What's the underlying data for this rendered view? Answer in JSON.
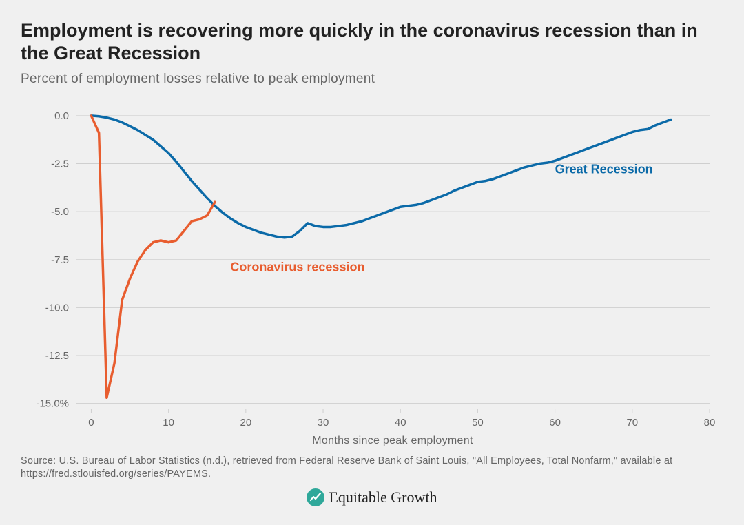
{
  "title": "Employment is recovering more quickly in the coronavirus recession than in the Great Recession",
  "subtitle": "Percent of employment losses relative to peak employment",
  "source": "Source: U.S. Bureau of Labor Statistics (n.d.), retrieved from Federal Reserve Bank of Saint Louis, \"All Employees, Total Nonfarm,\" available at https://fred.stlouisfed.org/series/PAYEMS.",
  "brand": {
    "name": "Equitable Growth",
    "icon_bg": "#2fa89a",
    "icon_fg": "#ffffff"
  },
  "chart": {
    "type": "line",
    "background_color": "#f0f0f0",
    "grid_color": "#cfcfcf",
    "text_color": "#666666",
    "xlabel": "Months since peak employment",
    "label_fontsize": 16,
    "tick_fontsize": 15,
    "xlim": [
      -2,
      80
    ],
    "ylim": [
      -15.3,
      0.5
    ],
    "xticks": [
      0,
      10,
      20,
      30,
      40,
      50,
      60,
      70,
      80
    ],
    "yticks": [
      -15.0,
      -12.5,
      -10.0,
      -7.5,
      -5.0,
      -2.5,
      0.0
    ],
    "ytick_labels": [
      "-15.0%",
      "-12.5",
      "-10.0",
      "-7.5",
      "-5.0",
      "-2.5",
      "0.0"
    ],
    "line_width": 3.5,
    "series": [
      {
        "name": "Great Recession",
        "color": "#0b6aa8",
        "label_x": 60,
        "label_y": -3.0,
        "points": [
          [
            0,
            0.0
          ],
          [
            1,
            -0.03
          ],
          [
            2,
            -0.1
          ],
          [
            3,
            -0.2
          ],
          [
            4,
            -0.35
          ],
          [
            5,
            -0.55
          ],
          [
            6,
            -0.75
          ],
          [
            7,
            -1.0
          ],
          [
            8,
            -1.25
          ],
          [
            9,
            -1.6
          ],
          [
            10,
            -1.95
          ],
          [
            11,
            -2.4
          ],
          [
            12,
            -2.9
          ],
          [
            13,
            -3.4
          ],
          [
            14,
            -3.85
          ],
          [
            15,
            -4.3
          ],
          [
            16,
            -4.7
          ],
          [
            17,
            -5.05
          ],
          [
            18,
            -5.35
          ],
          [
            19,
            -5.6
          ],
          [
            20,
            -5.8
          ],
          [
            21,
            -5.95
          ],
          [
            22,
            -6.1
          ],
          [
            23,
            -6.2
          ],
          [
            24,
            -6.3
          ],
          [
            25,
            -6.35
          ],
          [
            26,
            -6.3
          ],
          [
            27,
            -6.0
          ],
          [
            28,
            -5.6
          ],
          [
            29,
            -5.75
          ],
          [
            30,
            -5.8
          ],
          [
            31,
            -5.8
          ],
          [
            32,
            -5.75
          ],
          [
            33,
            -5.7
          ],
          [
            34,
            -5.6
          ],
          [
            35,
            -5.5
          ],
          [
            36,
            -5.35
          ],
          [
            37,
            -5.2
          ],
          [
            38,
            -5.05
          ],
          [
            39,
            -4.9
          ],
          [
            40,
            -4.75
          ],
          [
            41,
            -4.7
          ],
          [
            42,
            -4.65
          ],
          [
            43,
            -4.55
          ],
          [
            44,
            -4.4
          ],
          [
            45,
            -4.25
          ],
          [
            46,
            -4.1
          ],
          [
            47,
            -3.9
          ],
          [
            48,
            -3.75
          ],
          [
            49,
            -3.6
          ],
          [
            50,
            -3.45
          ],
          [
            51,
            -3.4
          ],
          [
            52,
            -3.3
          ],
          [
            53,
            -3.15
          ],
          [
            54,
            -3.0
          ],
          [
            55,
            -2.85
          ],
          [
            56,
            -2.7
          ],
          [
            57,
            -2.6
          ],
          [
            58,
            -2.5
          ],
          [
            59,
            -2.45
          ],
          [
            60,
            -2.35
          ],
          [
            61,
            -2.2
          ],
          [
            62,
            -2.05
          ],
          [
            63,
            -1.9
          ],
          [
            64,
            -1.75
          ],
          [
            65,
            -1.6
          ],
          [
            66,
            -1.45
          ],
          [
            67,
            -1.3
          ],
          [
            68,
            -1.15
          ],
          [
            69,
            -1.0
          ],
          [
            70,
            -0.85
          ],
          [
            71,
            -0.75
          ],
          [
            72,
            -0.7
          ],
          [
            73,
            -0.5
          ],
          [
            74,
            -0.35
          ],
          [
            75,
            -0.2
          ]
        ]
      },
      {
        "name": "Coronavirus recession",
        "color": "#e85d2f",
        "label_x": 18,
        "label_y": -8.1,
        "points": [
          [
            0,
            0.0
          ],
          [
            1,
            -0.9
          ],
          [
            2,
            -14.7
          ],
          [
            3,
            -12.9
          ],
          [
            4,
            -9.6
          ],
          [
            5,
            -8.5
          ],
          [
            6,
            -7.6
          ],
          [
            7,
            -7.0
          ],
          [
            8,
            -6.6
          ],
          [
            9,
            -6.5
          ],
          [
            10,
            -6.6
          ],
          [
            11,
            -6.5
          ],
          [
            12,
            -6.0
          ],
          [
            13,
            -5.5
          ],
          [
            14,
            -5.4
          ],
          [
            15,
            -5.2
          ],
          [
            16,
            -4.5
          ]
        ]
      }
    ]
  }
}
